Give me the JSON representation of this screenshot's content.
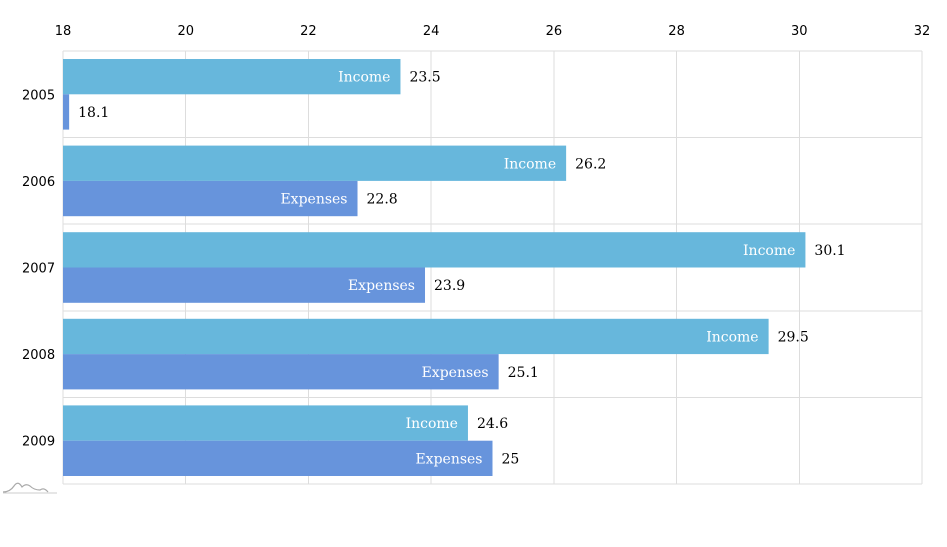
{
  "chart_data": {
    "type": "bar",
    "orientation": "horizontal",
    "categories": [
      "2005",
      "2006",
      "2007",
      "2008",
      "2009"
    ],
    "series": [
      {
        "name": "Income",
        "values": [
          23.5,
          26.2,
          30.1,
          29.5,
          24.6
        ],
        "color": "#67b7dc"
      },
      {
        "name": "Expenses",
        "values": [
          18.1,
          22.8,
          23.9,
          25.1,
          25
        ],
        "color": "#6794dc"
      }
    ],
    "bar_labels_inside": [
      [
        "Income",
        ""
      ],
      [
        "Income",
        "Expenses"
      ],
      [
        "Income",
        "Expenses"
      ],
      [
        "Income",
        "Expenses"
      ],
      [
        "Income",
        "Expenses"
      ]
    ],
    "x_ticks": [
      18,
      20,
      22,
      24,
      26,
      28,
      30,
      32
    ],
    "xlim": [
      18,
      32
    ],
    "value_axis_position": "top",
    "grid": true,
    "legend": "none"
  }
}
